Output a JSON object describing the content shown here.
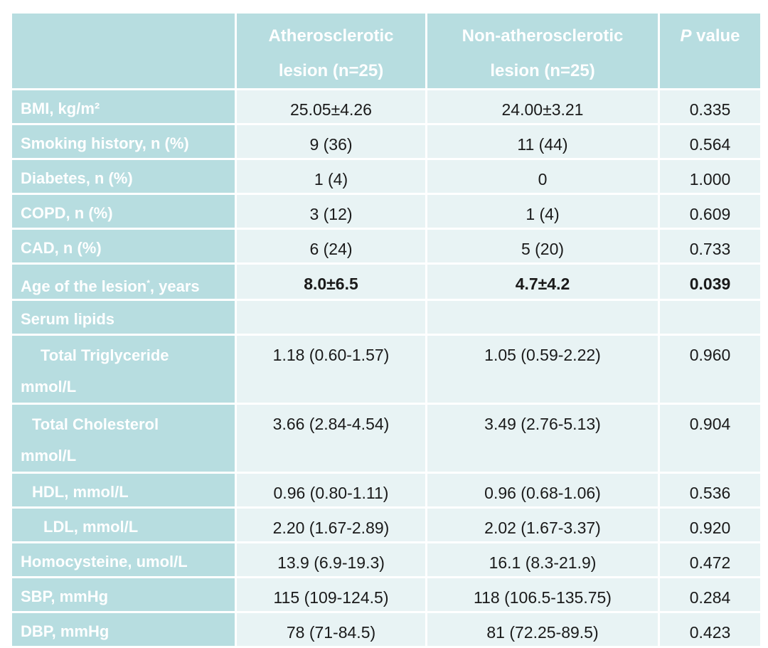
{
  "header": {
    "col1": "Atherosclerotic lesion (n=25)",
    "col1_line1": "Atherosclerotic",
    "col1_line2": "lesion (n=25)",
    "col2_line1": "Non-atherosclerotic",
    "col2_line2": "lesion (n=25)",
    "col3_italic": "P",
    "col3_rest": " value"
  },
  "rows": [
    {
      "label": "BMI, kg/m²",
      "a": "25.05±4.26",
      "b": "24.00±3.21",
      "p": "0.335"
    },
    {
      "label": "Smoking history, n (%)",
      "a": "9 (36)",
      "b": "11 (44)",
      "p": "0.564"
    },
    {
      "label": "Diabetes, n (%)",
      "a": "1 (4)",
      "b": "0",
      "p": "1.000"
    },
    {
      "label": "COPD, n (%)",
      "a": "3 (12)",
      "b": "1 (4)",
      "p": "0.609"
    },
    {
      "label": "CAD, n (%)",
      "a": "6 (24)",
      "b": "5 (20)",
      "p": "0.733"
    },
    {
      "label_pre": "Age of the lesion",
      "label_sup": "*",
      "label_post": ", years",
      "a": "8.0±6.5",
      "b": "4.7±4.2",
      "p": "0.039"
    },
    {
      "label": "Serum lipids",
      "a": "",
      "b": "",
      "p": ""
    },
    {
      "label_line1": "Total Triglyceride",
      "label_line2": "mmol/L",
      "a": "1.18 (0.60-1.57)",
      "b": "1.05 (0.59-2.22)",
      "p": "0.960"
    },
    {
      "label_line1": "Total Cholesterol",
      "label_line2": "mmol/L",
      "a": "3.66 (2.84-4.54)",
      "b": "3.49 (2.76-5.13)",
      "p": "0.904"
    },
    {
      "label": "HDL, mmol/L",
      "a": "0.96 (0.80-1.11)",
      "b": "0.96 (0.68-1.06)",
      "p": "0.536"
    },
    {
      "label": "LDL, mmol/L",
      "a": "2.20 (1.67-2.89)",
      "b": "2.02 (1.67-3.37)",
      "p": "0.920"
    },
    {
      "label": "Homocysteine, umol/L",
      "a": "13.9 (6.9-19.3)",
      "b": "16.1 (8.3-21.9)",
      "p": "0.472"
    },
    {
      "label": "SBP, mmHg",
      "a": "115 (109-124.5)",
      "b": "118 (106.5-135.75)",
      "p": "0.284"
    },
    {
      "label": "DBP, mmHg",
      "a": "78 (71-84.5)",
      "b": "81 (72.25-89.5)",
      "p": "0.423"
    }
  ],
  "colors": {
    "header_bg": "#b7dde0",
    "cell_bg": "#e8f3f4",
    "header_text": "#ffffff",
    "body_text": "#1a1a1a"
  }
}
